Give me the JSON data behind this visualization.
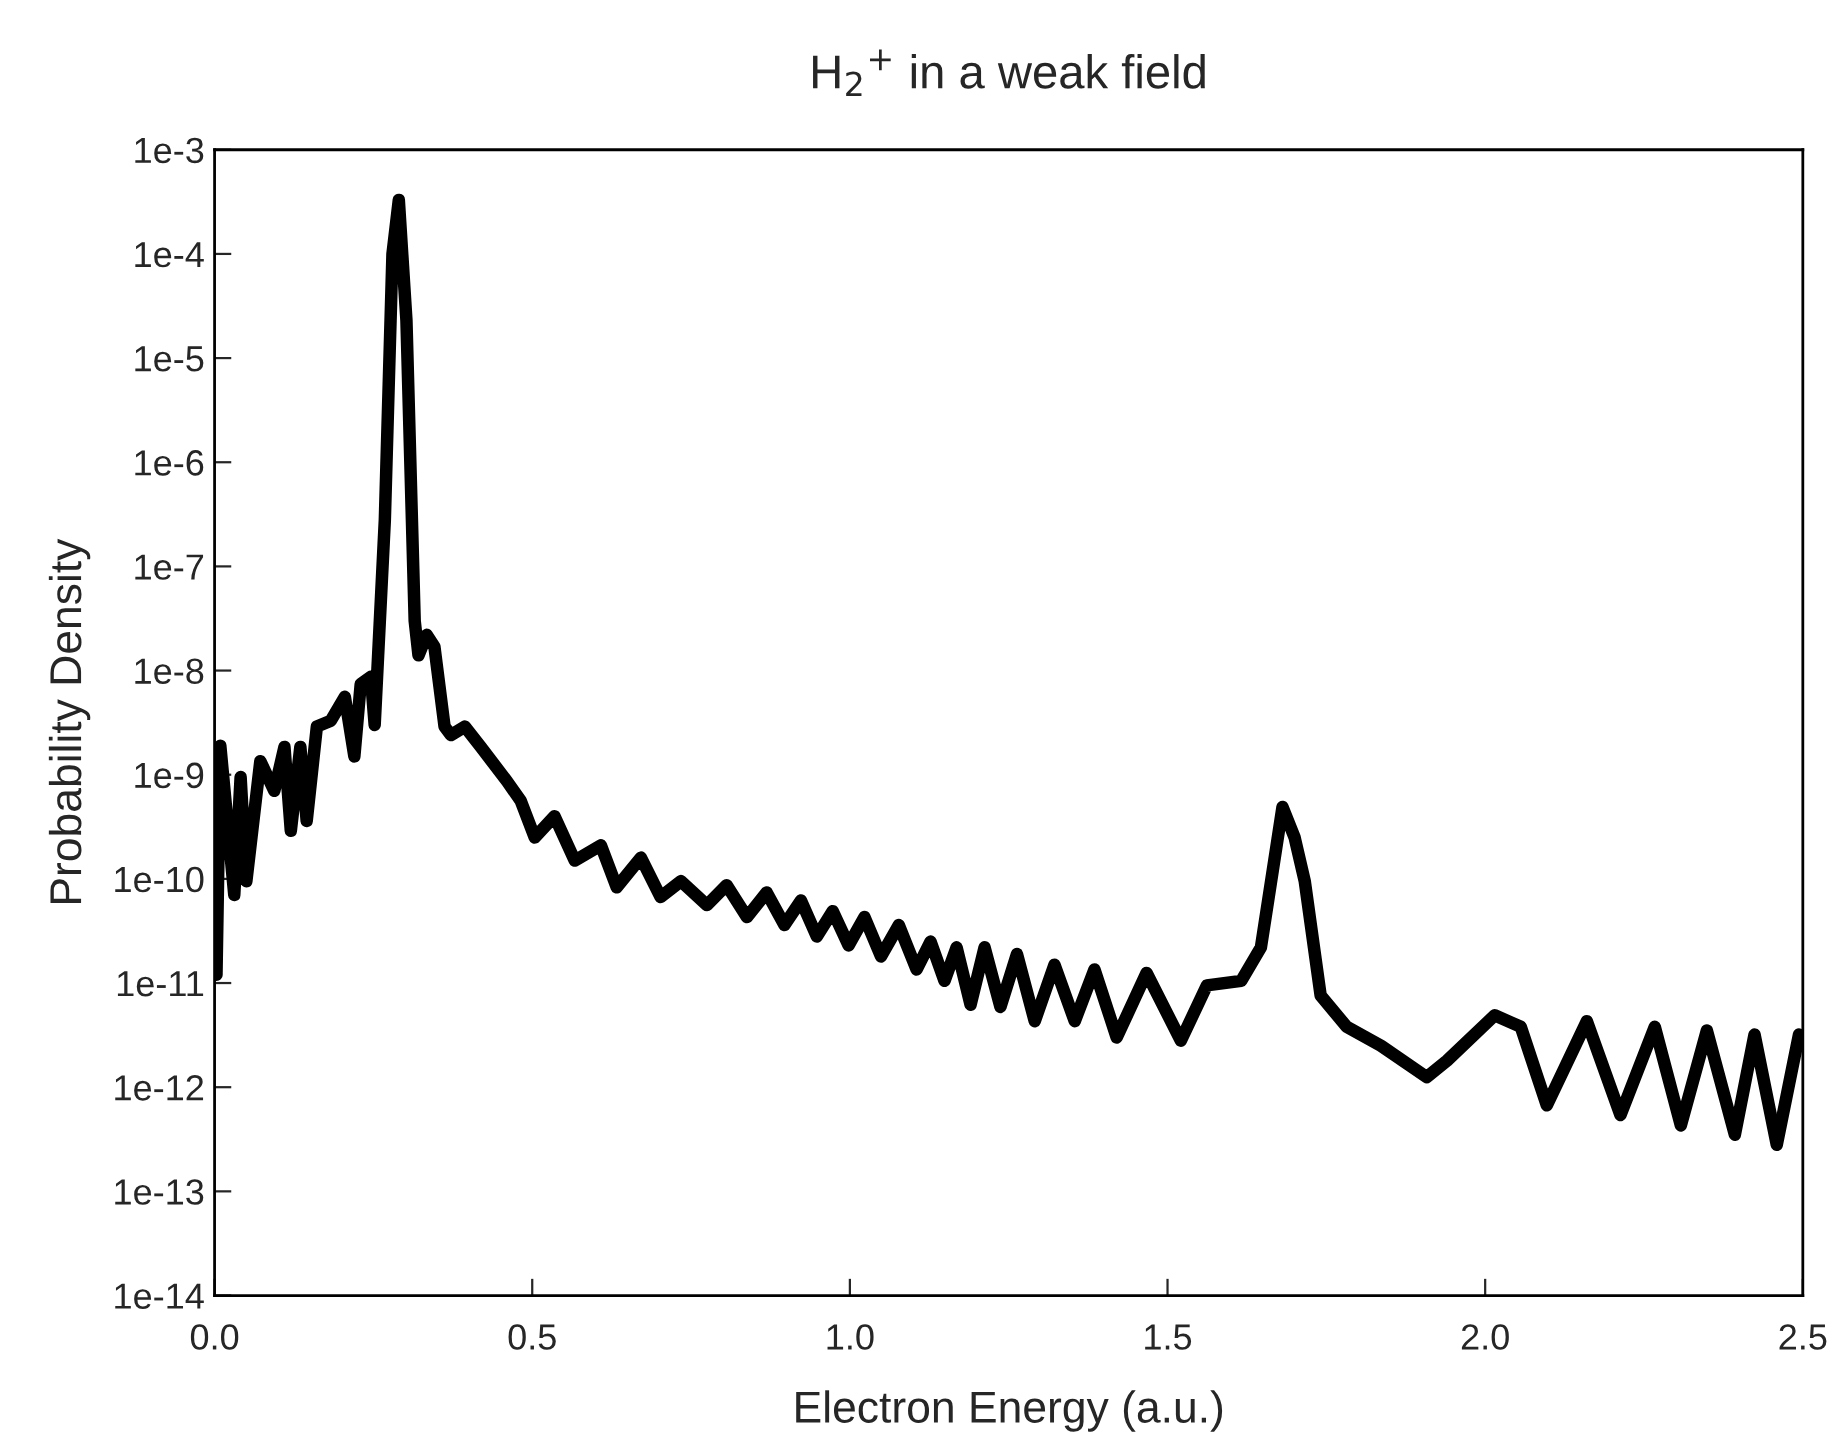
{
  "chart_data": {
    "type": "line",
    "title": "H$_{2}$$^{+}$ in a weak field",
    "xlabel": "Electron Energy (a.u.)",
    "ylabel": "Probability Density",
    "log": "y",
    "marker": "none",
    "line_style": "solid",
    "xlim": [
      0,
      2.5
    ],
    "ylim": [
      1e-14,
      0.001
    ],
    "xticks": [
      {
        "value": 0,
        "label": "0.0"
      },
      {
        "value": 0.5,
        "label": "0.5"
      },
      {
        "value": 1,
        "label": "1.0"
      },
      {
        "value": 1.5,
        "label": "1.5"
      },
      {
        "value": 2,
        "label": "2.0"
      },
      {
        "value": 2.5,
        "label": "2.5"
      }
    ],
    "yticks": [
      {
        "value": 1e-14,
        "label": "1e-14"
      },
      {
        "value": 1e-13,
        "label": "1e-13"
      },
      {
        "value": 1e-12,
        "label": "1e-12"
      },
      {
        "value": 1e-11,
        "label": "1e-11"
      },
      {
        "value": 1e-10,
        "label": "1e-10"
      },
      {
        "value": 1e-09,
        "label": "1e-9"
      },
      {
        "value": 1e-08,
        "label": "1e-8"
      },
      {
        "value": 1e-07,
        "label": "1e-7"
      },
      {
        "value": 1e-06,
        "label": "1e-6"
      },
      {
        "value": 1e-05,
        "label": "1e-5"
      },
      {
        "value": 0.0001,
        "label": "1e-4"
      },
      {
        "value": 0.001,
        "label": "1e-3"
      }
    ],
    "series": [
      {
        "color": "#000000",
        "x": [
          0.003,
          0.009,
          0.031,
          0.041,
          0.05,
          0.072,
          0.094,
          0.11,
          0.12,
          0.135,
          0.145,
          0.161,
          0.183,
          0.205,
          0.22,
          0.23,
          0.246,
          0.252,
          0.268,
          0.28,
          0.29,
          0.302,
          0.315,
          0.321,
          0.334,
          0.346,
          0.362,
          0.372,
          0.394,
          0.419,
          0.46,
          0.482,
          0.504,
          0.535,
          0.567,
          0.608,
          0.633,
          0.671,
          0.702,
          0.734,
          0.775,
          0.806,
          0.838,
          0.869,
          0.897,
          0.923,
          0.948,
          0.973,
          0.998,
          1.023,
          1.049,
          1.077,
          1.105,
          1.127,
          1.149,
          1.168,
          1.19,
          1.212,
          1.237,
          1.263,
          1.291,
          1.322,
          1.354,
          1.385,
          1.42,
          1.467,
          1.521,
          1.562,
          1.616,
          1.647,
          1.681,
          1.7,
          1.716,
          1.741,
          1.782,
          1.836,
          1.908,
          1.94,
          2.015,
          2.056,
          2.097,
          2.16,
          2.213,
          2.267,
          2.308,
          2.349,
          2.393,
          2.424,
          2.459,
          2.494
        ],
        "values": [
          1.2e-11,
          1.9e-09,
          7e-11,
          9.5e-10,
          9.5e-11,
          1.35e-09,
          7e-10,
          1.85e-09,
          2.9e-10,
          1.85e-09,
          3.6e-10,
          2.9e-09,
          3.3e-09,
          5.6e-09,
          1.5e-09,
          7.4e-09,
          8.7e-09,
          3e-09,
          2.8e-07,
          0.0001,
          0.00033,
          2.3e-05,
          3e-08,
          1.4e-08,
          2.2e-08,
          1.7e-08,
          2.9e-09,
          2.4e-09,
          2.9e-09,
          1.85e-09,
          8.7e-10,
          5.6e-10,
          2.5e-10,
          4e-10,
          1.5e-10,
          2.1e-10,
          8.3e-11,
          1.6e-10,
          6.7e-11,
          9.5e-11,
          5.6e-11,
          8.7e-11,
          4.3e-11,
          7.4e-11,
          3.6e-11,
          6.2e-11,
          2.8e-11,
          4.9e-11,
          2.3e-11,
          4.3e-11,
          1.8e-11,
          3.6e-11,
          1.35e-11,
          2.5e-11,
          1.05e-11,
          2.2e-11,
          6.2e-12,
          2.2e-11,
          5.9e-12,
          1.9e-11,
          4.3e-12,
          1.5e-11,
          4.3e-12,
          1.35e-11,
          3e-12,
          1.25e-11,
          2.8e-12,
          9.5e-12,
          1.05e-11,
          2.2e-11,
          4.9e-10,
          2.5e-10,
          9.5e-11,
          7.6e-12,
          3.8e-12,
          2.5e-12,
          1.25e-12,
          1.8e-12,
          4.9e-12,
          3.8e-12,
          6.7e-13,
          4.3e-12,
          5.4e-13,
          3.8e-12,
          4.3e-13,
          3.5e-12,
          3.5e-13,
          3.2e-12,
          2.8e-13,
          3.2e-12
        ]
      }
    ]
  }
}
